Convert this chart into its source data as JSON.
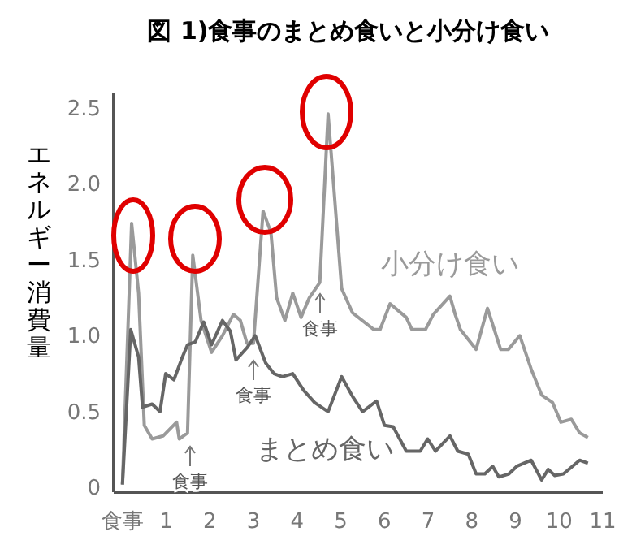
{
  "chart_data": {
    "type": "line",
    "title": "図 1)食事のまとめ食いと小分け食い",
    "ylabel": "エネルギー消費量",
    "xlim": [
      -0.2,
      11
    ],
    "ylim": [
      -0.03,
      2.6
    ],
    "xticks": [
      {
        "value": 0,
        "label": "食事"
      },
      1,
      2,
      3,
      4,
      5,
      6,
      7,
      8,
      9,
      10,
      11
    ],
    "yticks": [
      0,
      0.5,
      {
        "value": 1,
        "label": "1.0"
      },
      1.5,
      {
        "value": 2,
        "label": "2.0"
      },
      2.5
    ],
    "grid": false,
    "marker": "none",
    "line_style": "solid",
    "annotations": [
      "食事",
      "食事",
      "食事"
    ],
    "series": [
      {
        "name": "小分け食い",
        "color": "#9a9a9a",
        "x": [
          0,
          0.21,
          0.37,
          0.5,
          0.68,
          0.93,
          1.24,
          1.3,
          1.49,
          1.61,
          1.8,
          2.04,
          2.29,
          2.54,
          2.7,
          2.85,
          3.0,
          3.22,
          3.4,
          3.53,
          3.72,
          3.9,
          4.09,
          4.28,
          4.52,
          4.71,
          5.02,
          5.27,
          5.76,
          5.9,
          6.13,
          6.5,
          6.63,
          6.94,
          7.12,
          7.5,
          7.62,
          7.74,
          8.1,
          8.36,
          8.66,
          8.84,
          9.1,
          9.36,
          9.6,
          9.85,
          10.04,
          10.28,
          10.47,
          10.66
        ],
        "values": [
          0.02,
          1.74,
          1.28,
          0.41,
          0.32,
          0.34,
          0.43,
          0.32,
          0.36,
          1.53,
          1.1,
          0.89,
          1.0,
          1.14,
          1.1,
          0.95,
          0.95,
          1.82,
          1.68,
          1.25,
          1.1,
          1.28,
          1.12,
          1.25,
          1.35,
          2.46,
          1.31,
          1.15,
          1.04,
          1.04,
          1.21,
          1.12,
          1.04,
          1.04,
          1.14,
          1.26,
          1.14,
          1.04,
          0.91,
          1.18,
          0.91,
          0.91,
          1.0,
          0.78,
          0.61,
          0.56,
          0.43,
          0.45,
          0.36,
          0.33
        ]
      },
      {
        "name": "まとめ食い",
        "color": "#666666",
        "x": [
          0,
          0.19,
          0.37,
          0.46,
          0.68,
          0.86,
          0.99,
          1.18,
          1.36,
          1.49,
          1.67,
          1.86,
          2.04,
          2.29,
          2.47,
          2.6,
          2.85,
          3.04,
          3.28,
          3.47,
          3.66,
          3.9,
          4.15,
          4.4,
          4.71,
          5.02,
          5.27,
          5.5,
          5.82,
          6.0,
          6.2,
          6.5,
          6.82,
          6.99,
          7.17,
          7.5,
          7.68,
          7.92,
          8.1,
          8.3,
          8.48,
          8.62,
          8.85,
          9.03,
          9.36,
          9.6,
          9.75,
          9.9,
          10.1,
          10.47,
          10.66
        ],
        "values": [
          0.02,
          1.04,
          0.86,
          0.53,
          0.55,
          0.5,
          0.75,
          0.71,
          0.85,
          0.94,
          0.96,
          1.09,
          0.94,
          1.1,
          1.03,
          0.84,
          0.92,
          1.0,
          0.82,
          0.75,
          0.73,
          0.75,
          0.64,
          0.56,
          0.5,
          0.73,
          0.6,
          0.5,
          0.57,
          0.41,
          0.4,
          0.24,
          0.24,
          0.32,
          0.24,
          0.34,
          0.24,
          0.22,
          0.09,
          0.09,
          0.14,
          0.07,
          0.09,
          0.14,
          0.18,
          0.05,
          0.12,
          0.08,
          0.09,
          0.18,
          0.16
        ]
      }
    ]
  }
}
